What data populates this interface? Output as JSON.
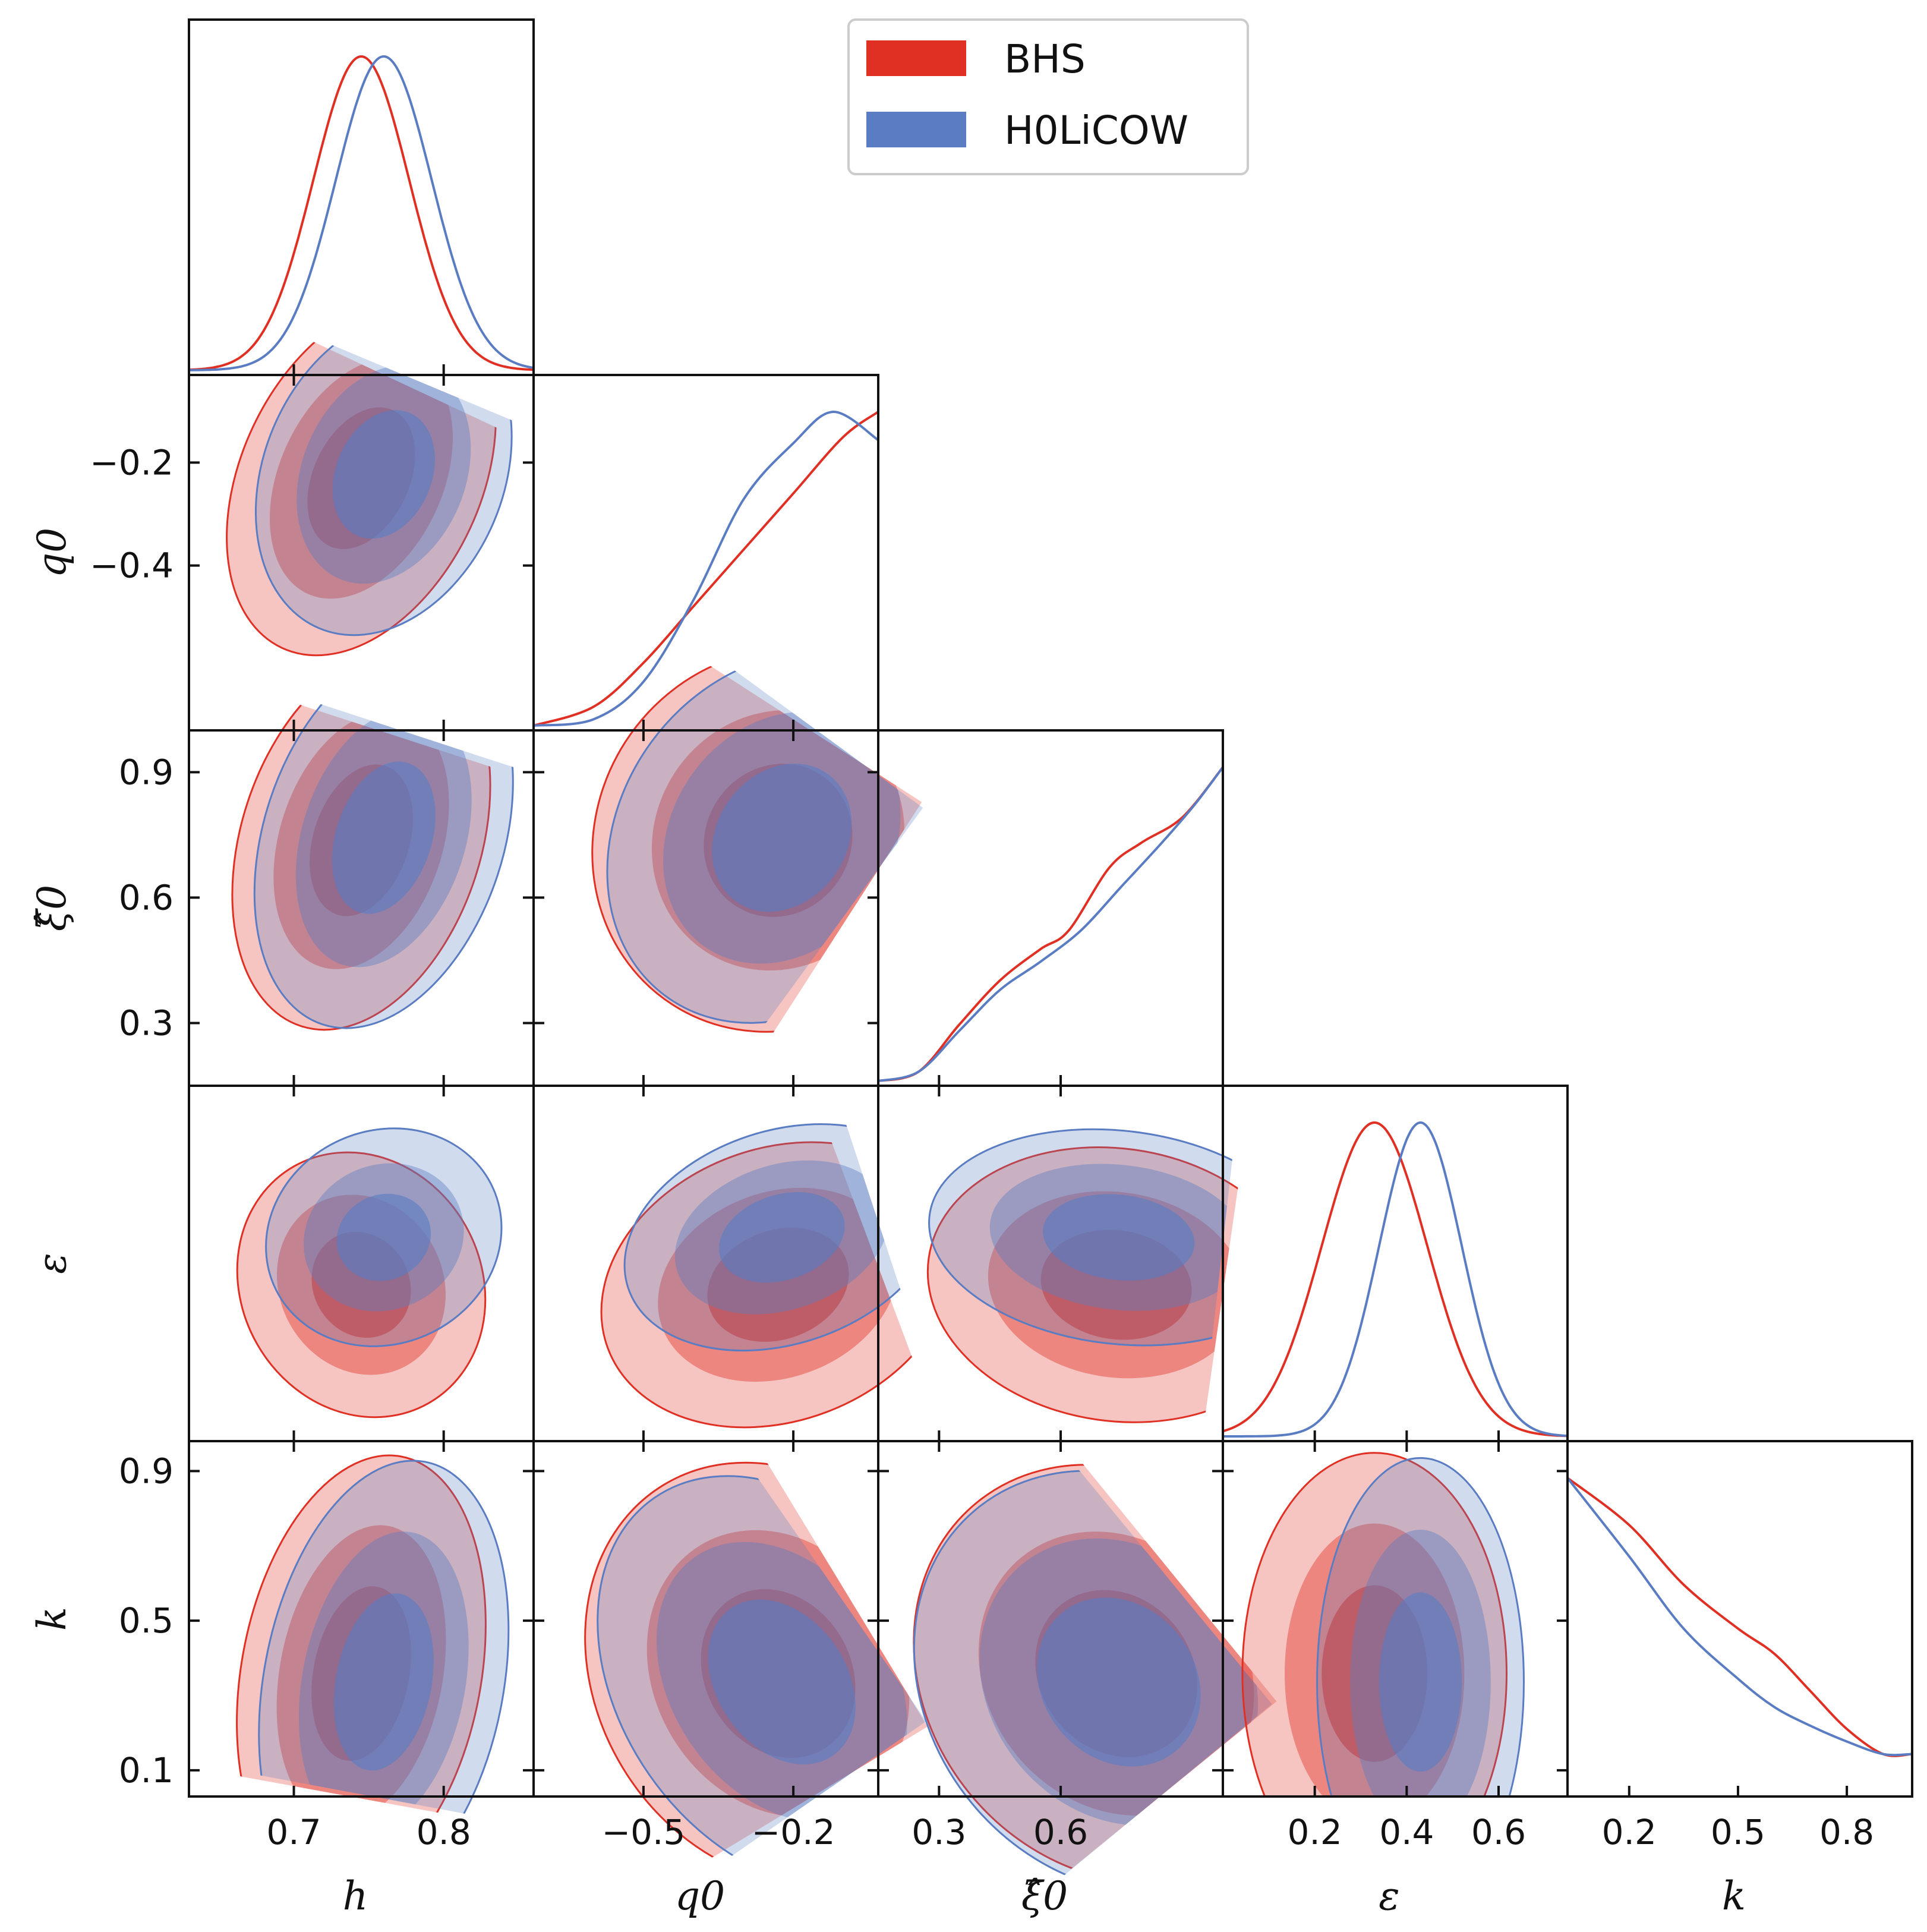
{
  "chart_data": {
    "type": "corner",
    "parameters": [
      {
        "key": "h",
        "label": "h",
        "range": [
          0.63,
          0.86
        ],
        "ticks": [
          0.7,
          0.8
        ],
        "tick_labels": [
          "0.7",
          "0.8"
        ]
      },
      {
        "key": "q0",
        "label": "q0",
        "range": [
          -0.72,
          -0.03
        ],
        "ticks": [
          -0.5,
          -0.2
        ],
        "tick_labels": [
          "−0.5",
          "−0.2"
        ],
        "ytick_labels": [
          "−0.2",
          "−0.4"
        ],
        "yticks": [
          -0.2,
          -0.4
        ]
      },
      {
        "key": "xi0",
        "label": "ξ̂0",
        "range": [
          0.15,
          1.0
        ],
        "ticks": [
          0.3,
          0.6
        ],
        "tick_labels": [
          "0.3",
          "0.6"
        ],
        "ytick_labels": [
          "0.9",
          "0.6",
          "0.3"
        ],
        "yticks": [
          0.9,
          0.6,
          0.3
        ]
      },
      {
        "key": "eps",
        "label": "ε",
        "range": [
          0.0,
          0.75
        ],
        "ticks": [
          0.2,
          0.4,
          0.6
        ],
        "tick_labels": [
          "0.2",
          "0.4",
          "0.6"
        ]
      },
      {
        "key": "k",
        "label": "k",
        "range": [
          0.03,
          0.98
        ],
        "ticks": [
          0.2,
          0.5,
          0.8
        ],
        "tick_labels": [
          "0.2",
          "0.5",
          "0.8"
        ],
        "ytick_labels": [
          "0.9",
          "0.5",
          "0.1"
        ],
        "yticks": [
          0.9,
          0.5,
          0.1
        ]
      }
    ],
    "legend": {
      "position": "top-center",
      "entries": [
        {
          "name": "BHS",
          "color": "#e03024"
        },
        {
          "name": "H0LiCOW",
          "color": "#5a7cc2"
        }
      ]
    },
    "series": [
      {
        "name": "BHS",
        "marginals": {
          "h": {
            "mean": 0.745,
            "sd": 0.032
          },
          "q0": {
            "points": [
              [
                -0.72,
                0.0
              ],
              [
                -0.6,
                0.06
              ],
              [
                -0.5,
                0.2
              ],
              [
                -0.4,
                0.38
              ],
              [
                -0.3,
                0.56
              ],
              [
                -0.2,
                0.74
              ],
              [
                -0.1,
                0.92
              ],
              [
                -0.03,
                1.0
              ]
            ]
          },
          "xi0": {
            "points": [
              [
                0.15,
                0.0
              ],
              [
                0.25,
                0.03
              ],
              [
                0.35,
                0.18
              ],
              [
                0.45,
                0.32
              ],
              [
                0.55,
                0.42
              ],
              [
                0.62,
                0.48
              ],
              [
                0.72,
                0.68
              ],
              [
                0.8,
                0.76
              ],
              [
                0.9,
                0.84
              ],
              [
                1.0,
                1.0
              ]
            ]
          },
          "eps": {
            "mean": 0.33,
            "sd": 0.115
          },
          "k": {
            "points": [
              [
                0.03,
                1.0
              ],
              [
                0.2,
                0.85
              ],
              [
                0.35,
                0.66
              ],
              [
                0.5,
                0.52
              ],
              [
                0.6,
                0.44
              ],
              [
                0.7,
                0.32
              ],
              [
                0.8,
                0.2
              ],
              [
                0.9,
                0.12
              ],
              [
                0.98,
                0.12
              ]
            ]
          }
        }
      },
      {
        "name": "H0LiCOW",
        "marginals": {
          "h": {
            "mean": 0.76,
            "sd": 0.032
          },
          "q0": {
            "points": [
              [
                -0.72,
                0.0
              ],
              [
                -0.6,
                0.02
              ],
              [
                -0.5,
                0.14
              ],
              [
                -0.4,
                0.4
              ],
              [
                -0.3,
                0.72
              ],
              [
                -0.2,
                0.9
              ],
              [
                -0.12,
                1.0
              ],
              [
                -0.03,
                0.91
              ]
            ]
          },
          "xi0": {
            "points": [
              [
                0.15,
                0.0
              ],
              [
                0.25,
                0.03
              ],
              [
                0.35,
                0.16
              ],
              [
                0.45,
                0.29
              ],
              [
                0.55,
                0.38
              ],
              [
                0.65,
                0.48
              ],
              [
                0.75,
                0.62
              ],
              [
                0.85,
                0.76
              ],
              [
                0.93,
                0.88
              ],
              [
                1.0,
                1.0
              ]
            ]
          },
          "eps": {
            "mean": 0.43,
            "sd": 0.09
          },
          "k": {
            "points": [
              [
                0.03,
                1.0
              ],
              [
                0.2,
                0.75
              ],
              [
                0.35,
                0.52
              ],
              [
                0.5,
                0.36
              ],
              [
                0.6,
                0.27
              ],
              [
                0.7,
                0.21
              ],
              [
                0.8,
                0.16
              ],
              [
                0.9,
                0.12
              ],
              [
                0.98,
                0.12
              ]
            ]
          }
        }
      }
    ]
  }
}
